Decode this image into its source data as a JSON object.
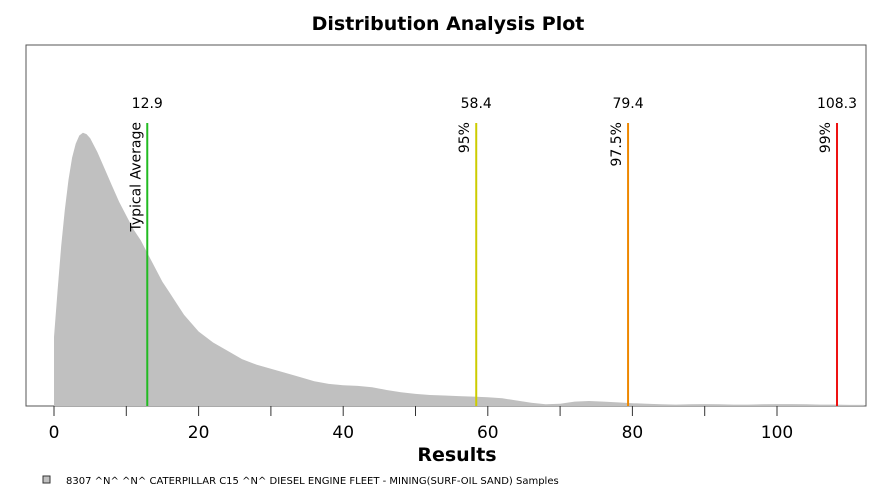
{
  "chart_data": {
    "type": "area",
    "title": "Distribution Analysis Plot",
    "xlabel": "Results",
    "ylabel": "",
    "xlim": [
      -3,
      112
    ],
    "ylim": [
      0,
      1.0
    ],
    "xticks": [
      0,
      20,
      40,
      60,
      80,
      100
    ],
    "xtick_labels": [
      "0",
      "20",
      "40",
      "60",
      "80",
      "100"
    ],
    "xminor": [
      10,
      30,
      50,
      70,
      90
    ],
    "grid": false,
    "legend_position": "bottom-left",
    "series": [
      {
        "name": "8307  ^N^ ^N^ CATERPILLAR C15 ^N^ DIESEL ENGINE FLEET - MINING(SURF-OIL SAND)  Samples",
        "color": "#c0c0c0",
        "x": [
          0,
          0.5,
          1,
          1.5,
          2,
          2.5,
          3,
          3.5,
          4,
          4.5,
          5,
          6,
          7,
          8,
          9,
          10,
          11,
          12,
          13,
          14,
          15,
          16,
          17,
          18,
          19,
          20,
          22,
          24,
          26,
          28,
          30,
          32,
          34,
          36,
          38,
          40,
          42,
          44,
          46,
          48,
          50,
          52,
          54,
          56,
          58,
          60,
          62,
          64,
          66,
          68,
          70,
          72,
          74,
          76,
          78,
          80,
          82,
          84,
          86,
          88,
          90,
          92,
          94,
          96,
          98,
          100,
          102,
          104,
          106,
          108,
          110,
          112
        ],
        "values": [
          0.25,
          0.42,
          0.58,
          0.71,
          0.82,
          0.9,
          0.95,
          0.98,
          0.99,
          0.985,
          0.97,
          0.92,
          0.86,
          0.8,
          0.74,
          0.69,
          0.64,
          0.6,
          0.55,
          0.5,
          0.45,
          0.41,
          0.37,
          0.33,
          0.3,
          0.27,
          0.23,
          0.2,
          0.17,
          0.15,
          0.135,
          0.12,
          0.105,
          0.09,
          0.08,
          0.075,
          0.073,
          0.068,
          0.058,
          0.05,
          0.044,
          0.04,
          0.038,
          0.036,
          0.034,
          0.032,
          0.028,
          0.02,
          0.012,
          0.006,
          0.008,
          0.016,
          0.018,
          0.016,
          0.013,
          0.01,
          0.008,
          0.006,
          0.005,
          0.006,
          0.007,
          0.006,
          0.005,
          0.005,
          0.006,
          0.007,
          0.007,
          0.006,
          0.005,
          0.005,
          0.004,
          0.004
        ]
      }
    ],
    "reference_lines": [
      {
        "x": 12.9,
        "value_label": "12.9",
        "label": "Typical Average",
        "color": "#22bb22"
      },
      {
        "x": 58.4,
        "value_label": "58.4",
        "label": "95%",
        "color": "#cccc00"
      },
      {
        "x": 79.4,
        "value_label": "79.4",
        "label": "97.5%",
        "color": "#ee8800"
      },
      {
        "x": 108.3,
        "value_label": "108.3",
        "label": "99%",
        "color": "#ee1111"
      }
    ]
  }
}
